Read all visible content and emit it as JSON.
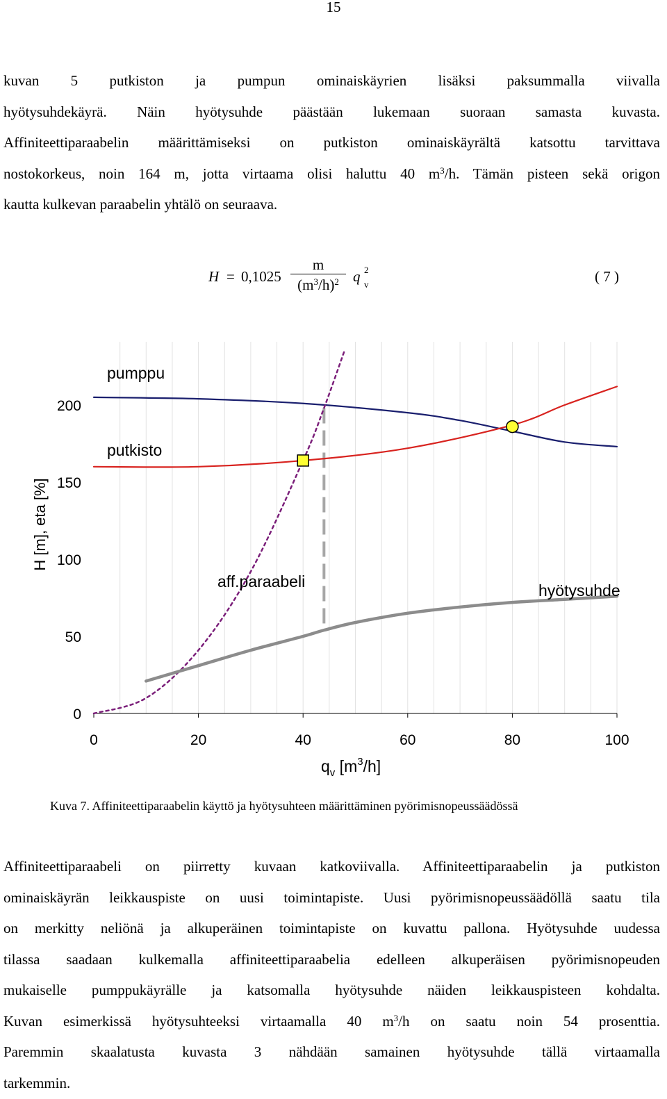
{
  "page_number": "15",
  "paragraph1": {
    "lines": [
      "kuvan 5 putkiston ja pumpun ominaiskäyrien lisäksi paksummalla viivalla",
      "hyötysuhdekäyrä. Näin hyötysuhde päästään lukemaan suoraan samasta kuvasta.",
      "Affiniteettiparaabelin määrittämiseksi on putkiston ominaiskäyrältä katsottu tarvittava"
    ],
    "line4_before": "nostokorkeus, noin 164 m, jotta virtaama olisi haluttu 40 m",
    "line4_sup": "3",
    "line4_after": "/h. Tämän pisteen sekä origon",
    "line5": "kautta kulkevan paraabelin yhtälö on seuraava."
  },
  "equation": {
    "lhs": "H",
    "equals": "=",
    "coefficient": "0,1025",
    "numerator": "m",
    "denominator_open": "(m",
    "denominator_sup": "3",
    "denominator_close": "/h)",
    "denominator_exp": "2",
    "variable": "q",
    "variable_exp": "2",
    "variable_sub": "v",
    "number": "( 7 )"
  },
  "chart_data": {
    "type": "line",
    "ylabel": "H [m], eta [%]",
    "xlabel_main": "q",
    "xlabel_sub": "v",
    "xlabel_unit_before": " [m",
    "xlabel_unit_sup": "3",
    "xlabel_unit_after": "/h]",
    "xlim": [
      0,
      100
    ],
    "ylim": [
      0,
      200
    ],
    "x_ticks": [
      "0",
      "20",
      "40",
      "60",
      "80",
      "100"
    ],
    "y_ticks": [
      "0",
      "50",
      "100",
      "150",
      "200"
    ],
    "grid": "vertical",
    "series": [
      {
        "name": "pumppu",
        "color": "#1a1f6e",
        "x": [
          0,
          20,
          40,
          60,
          70,
          80,
          90,
          100
        ],
        "y": [
          205,
          204,
          201,
          195,
          190,
          183,
          176,
          173
        ]
      },
      {
        "name": "putkisto",
        "color": "#d8231f",
        "x": [
          0,
          20,
          40,
          60,
          80,
          90,
          100
        ],
        "y": [
          160,
          160,
          164,
          172,
          187,
          200,
          212
        ]
      },
      {
        "name": "aff.paraabeli",
        "color": "#7b1f7a",
        "x": [
          0,
          10,
          20,
          30,
          40,
          44,
          48
        ],
        "y": [
          0,
          10,
          41,
          92,
          164,
          198,
          236
        ]
      },
      {
        "name": "hyötysuhde",
        "color": "#8c8c8c",
        "x": [
          10,
          20,
          30,
          40,
          44,
          50,
          60,
          70,
          80,
          90,
          100
        ],
        "y": [
          21,
          31,
          41,
          50,
          54,
          59,
          65,
          69,
          72,
          74,
          76
        ]
      }
    ],
    "markers": [
      {
        "shape": "square",
        "x": 40,
        "y": 164,
        "color": "#ffff33"
      },
      {
        "shape": "circle",
        "x": 80,
        "y": 186,
        "color": "#ffff33"
      }
    ],
    "vertical_line": {
      "x": 44,
      "y_from": 54,
      "y_to": 198,
      "color": "#a6a6a6"
    }
  },
  "caption": "Kuva 7. Affiniteettiparaabelin käyttö ja hyötysuhteen määrittäminen pyörimisnopeussäädössä",
  "paragraph2": {
    "line1": "Affiniteettiparaabeli on piirretty kuvaan katkoviivalla. Affiniteettiparaabelin ja putkiston",
    "line2": "ominaiskäyrän leikkauspiste on uusi toimintapiste. Uusi pyörimisnopeussäädöllä saatu tila",
    "line3": "on merkitty neliönä ja alkuperäinen toimintapiste on kuvattu pallona. Hyötysuhde uudessa",
    "line4": "tilassa saadaan kulkemalla affiniteettiparaabelia edelleen alkuperäisen pyörimisnopeuden",
    "line5": "mukaiselle pumppukäyrälle ja katsomalla hyötysuhde näiden leikkauspisteen kohdalta.",
    "line6_before": "Kuvan esimerkissä hyötysuhteeksi virtaamalla 40 m",
    "line6_sup": "3",
    "line6_after": "/h on saatu noin 54 prosenttia.",
    "line7": "Paremmin skaalatusta kuvasta 3 nähdään samainen hyötysuhde tällä virtaamalla",
    "line8": "tarkemmin."
  }
}
